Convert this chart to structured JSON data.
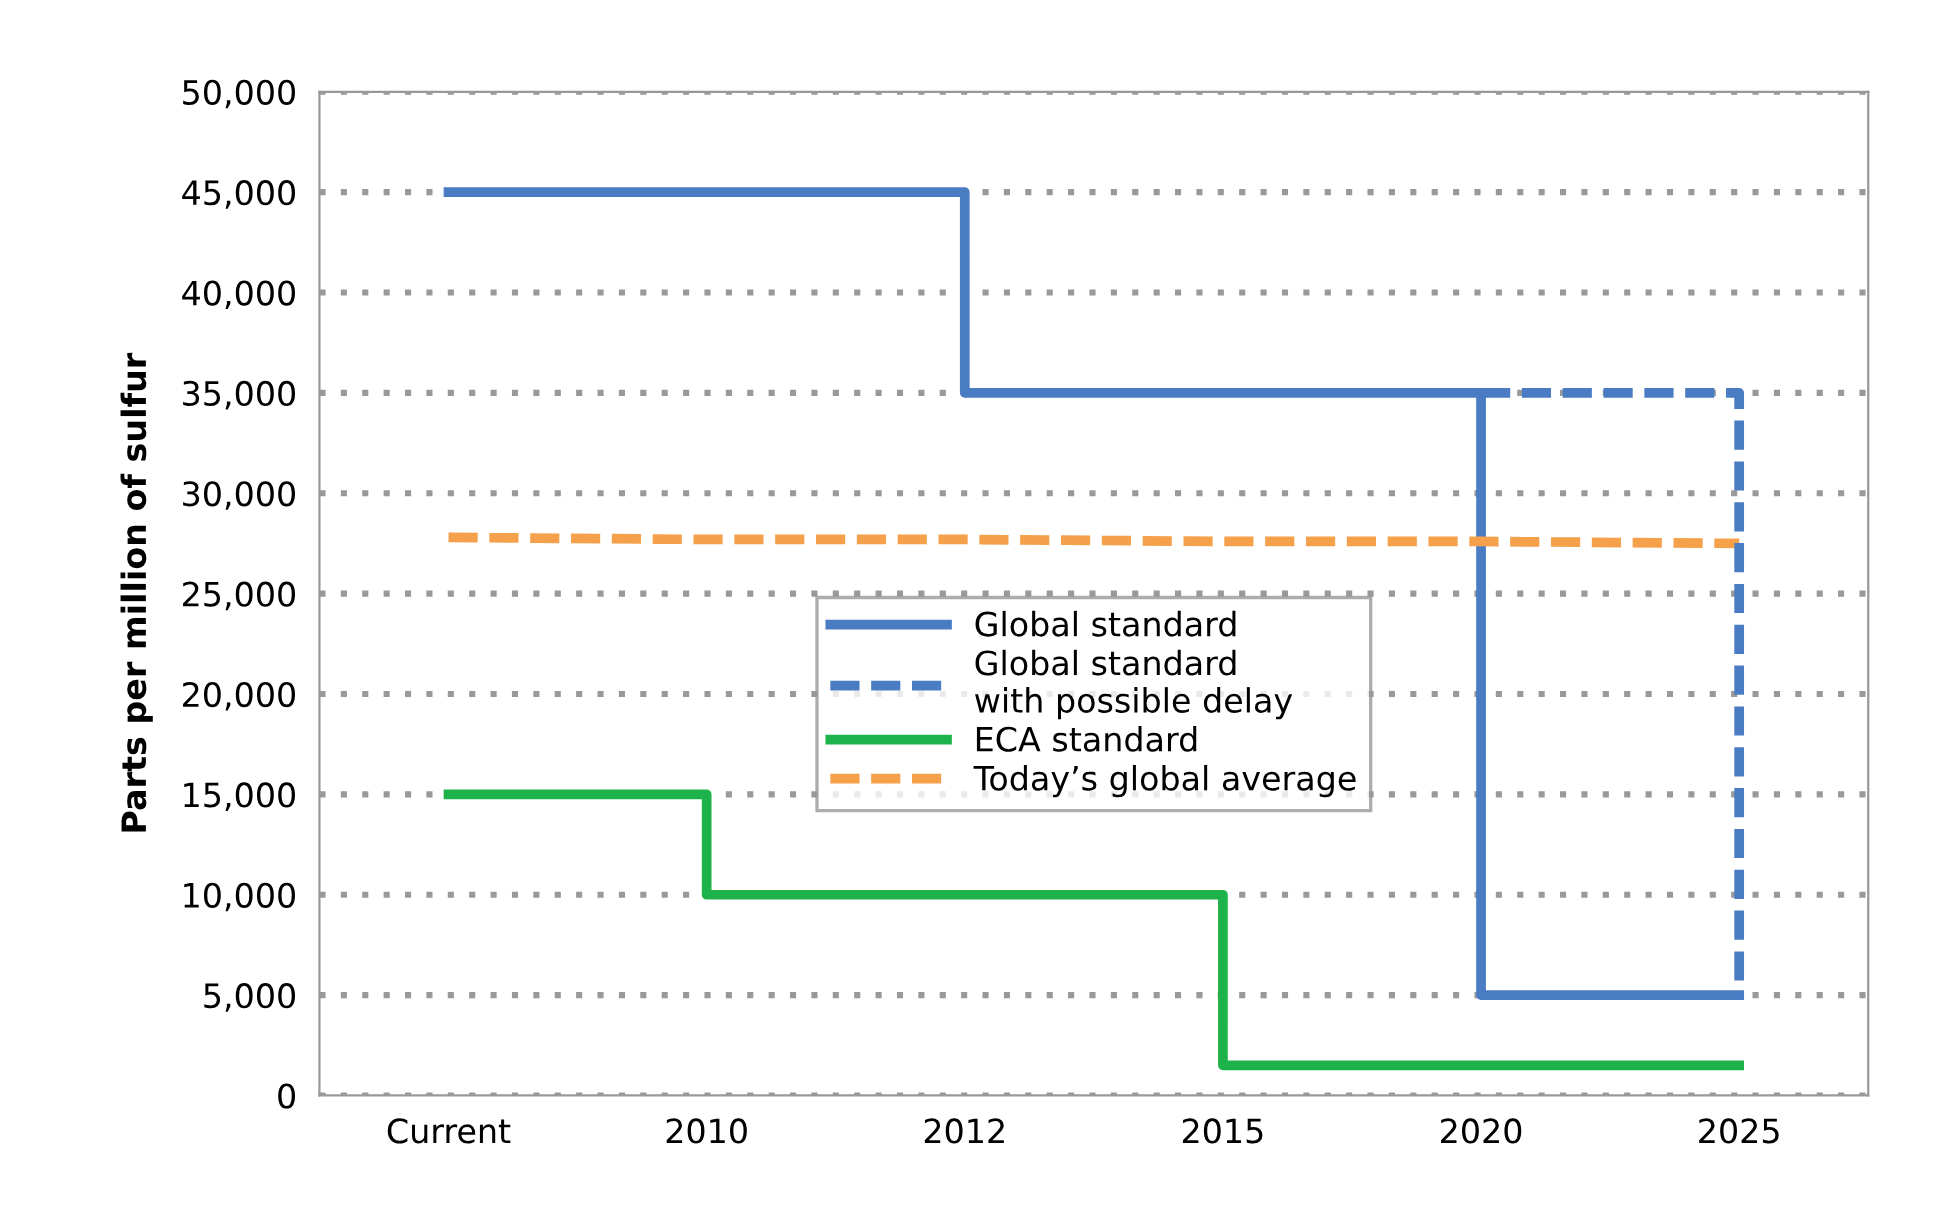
{
  "chart_data": {
    "type": "step",
    "ylabel": "Parts per million of sulfur",
    "categories": [
      "Current",
      "2010",
      "2012",
      "2015",
      "2020",
      "2025"
    ],
    "series": [
      {
        "name": "Global standard",
        "color": "#4a7cc4",
        "line_style": "solid",
        "values": [
          45000,
          45000,
          35000,
          35000,
          5000,
          5000
        ]
      },
      {
        "name": "Global standard\nwith possible delay",
        "color": "#4a7cc4",
        "line_style": "dashed",
        "values": [
          null,
          null,
          null,
          null,
          35000,
          5000
        ]
      },
      {
        "name": "ECA standard",
        "color": "#1db34a",
        "line_style": "solid",
        "values": [
          15000,
          10000,
          10000,
          1500,
          1500,
          1500
        ]
      },
      {
        "name": "Today’s global average",
        "type": "line",
        "color": "#f5a04a",
        "line_style": "dashed",
        "values": [
          27800,
          27700,
          27700,
          27600,
          27600,
          27500
        ]
      }
    ],
    "ylim": [
      0,
      50000
    ],
    "yticks": [
      0,
      {
        "value": 5000,
        "label": "5,000"
      },
      {
        "value": 10000,
        "label": "10,000"
      },
      {
        "value": 15000,
        "label": "15,000"
      },
      {
        "value": 20000,
        "label": "20,000"
      },
      {
        "value": 25000,
        "label": "25,000"
      },
      {
        "value": 30000,
        "label": "30,000"
      },
      {
        "value": 35000,
        "label": "35,000"
      },
      {
        "value": 40000,
        "label": "40,000"
      },
      {
        "value": 45000,
        "label": "45,000"
      },
      {
        "value": 50000,
        "label": "50,000"
      }
    ],
    "grid": "y",
    "legend": "center",
    "marker": "none"
  }
}
